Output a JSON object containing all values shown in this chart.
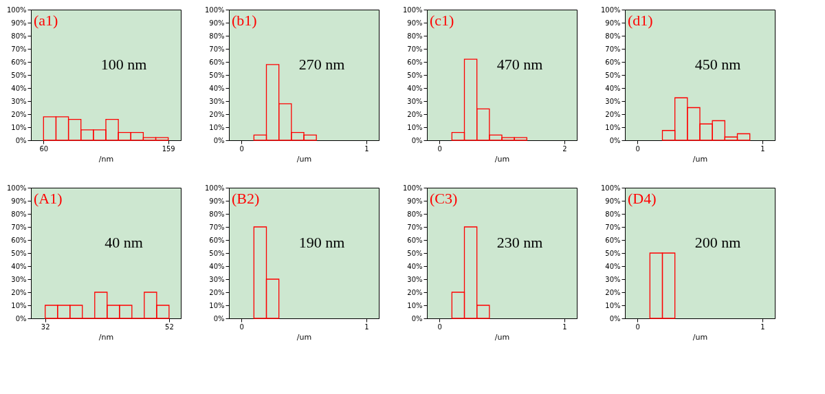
{
  "chart_data": [
    {
      "type": "histogram",
      "bins": [
        60,
        69.9,
        79.8,
        89.7,
        99.6,
        109.5,
        119.4,
        129.3,
        139.2,
        149.1,
        159
      ],
      "values": [
        18,
        18,
        16,
        8,
        8,
        16,
        6,
        6,
        2,
        2
      ],
      "color": "#ff0000",
      "xlim": [
        50,
        169
      ],
      "xticks": [
        60,
        159
      ],
      "xlabel": "/nm",
      "ylim": [
        0,
        100
      ],
      "yticks": [
        {
          "value": 0,
          "label": "0%"
        },
        {
          "value": 10,
          "label": "10%"
        },
        {
          "value": 20,
          "label": "20%"
        },
        {
          "value": 30,
          "label": "30%"
        },
        {
          "value": 40,
          "label": "40%"
        },
        {
          "value": 50,
          "label": "50%"
        },
        {
          "value": 60,
          "label": "60%"
        },
        {
          "value": 70,
          "label": "70%"
        },
        {
          "value": 80,
          "label": "80%"
        },
        {
          "value": 90,
          "label": "90%"
        },
        {
          "value": 100,
          "label": "100%"
        }
      ],
      "grid": false,
      "annotations": [
        "(a1)",
        "100 nm"
      ]
    },
    {
      "type": "histogram",
      "bins": [
        0.1,
        0.2,
        0.3,
        0.4,
        0.5,
        0.6
      ],
      "values": [
        4,
        58,
        28,
        6,
        4
      ],
      "color": "#ff0000",
      "xlim": [
        -0.1,
        1.1
      ],
      "xticks": [
        0,
        1
      ],
      "xlabel": "/um",
      "ylim": [
        0,
        100
      ],
      "yticks": [
        {
          "value": 0,
          "label": "0%"
        },
        {
          "value": 10,
          "label": "10%"
        },
        {
          "value": 20,
          "label": "20%"
        },
        {
          "value": 30,
          "label": "30%"
        },
        {
          "value": 40,
          "label": "40%"
        },
        {
          "value": 50,
          "label": "50%"
        },
        {
          "value": 60,
          "label": "60%"
        },
        {
          "value": 70,
          "label": "70%"
        },
        {
          "value": 80,
          "label": "80%"
        },
        {
          "value": 90,
          "label": "90%"
        },
        {
          "value": 100,
          "label": "100%"
        }
      ],
      "grid": false,
      "annotations": [
        "(b1)",
        "270 nm"
      ]
    },
    {
      "type": "histogram",
      "bins": [
        0.2,
        0.4,
        0.6,
        0.8,
        1.0,
        1.2,
        1.4
      ],
      "values": [
        6,
        62,
        24,
        4,
        2,
        2
      ],
      "color": "#ff0000",
      "xlim": [
        -0.2,
        2.2
      ],
      "xticks": [
        0,
        2
      ],
      "xlabel": "/um",
      "ylim": [
        0,
        100
      ],
      "yticks": [
        {
          "value": 0,
          "label": "0%"
        },
        {
          "value": 10,
          "label": "10%"
        },
        {
          "value": 20,
          "label": "20%"
        },
        {
          "value": 30,
          "label": "30%"
        },
        {
          "value": 40,
          "label": "40%"
        },
        {
          "value": 50,
          "label": "50%"
        },
        {
          "value": 60,
          "label": "60%"
        },
        {
          "value": 70,
          "label": "70%"
        },
        {
          "value": 80,
          "label": "80%"
        },
        {
          "value": 90,
          "label": "90%"
        },
        {
          "value": 100,
          "label": "100%"
        }
      ],
      "grid": false,
      "annotations": [
        "(c1)",
        "470 nm"
      ]
    },
    {
      "type": "histogram",
      "bins": [
        0.2,
        0.3,
        0.4,
        0.5,
        0.6,
        0.7,
        0.8,
        0.9
      ],
      "values": [
        7.5,
        32.5,
        25,
        12.5,
        15,
        2.5,
        5
      ],
      "color": "#ff0000",
      "xlim": [
        -0.1,
        1.1
      ],
      "xticks": [
        0,
        1
      ],
      "xlabel": "/um",
      "ylim": [
        0,
        100
      ],
      "yticks": [
        {
          "value": 0,
          "label": "0%"
        },
        {
          "value": 10,
          "label": "10%"
        },
        {
          "value": 20,
          "label": "20%"
        },
        {
          "value": 30,
          "label": "30%"
        },
        {
          "value": 40,
          "label": "40%"
        },
        {
          "value": 50,
          "label": "50%"
        },
        {
          "value": 60,
          "label": "60%"
        },
        {
          "value": 70,
          "label": "70%"
        },
        {
          "value": 80,
          "label": "80%"
        },
        {
          "value": 90,
          "label": "90%"
        },
        {
          "value": 100,
          "label": "100%"
        }
      ],
      "grid": false,
      "annotations": [
        "(d1)",
        "450 nm"
      ]
    },
    {
      "type": "histogram",
      "bins": [
        32,
        34,
        36,
        38,
        40,
        42,
        44,
        46,
        48,
        50,
        52
      ],
      "values": [
        10,
        10,
        10,
        0,
        20,
        10,
        10,
        0,
        20,
        10
      ],
      "color": "#ff0000",
      "xlim": [
        29.7,
        53.9
      ],
      "xticks": [
        32,
        52
      ],
      "xlabel": "/nm",
      "ylim": [
        0,
        100
      ],
      "yticks": [
        {
          "value": 0,
          "label": "0%"
        },
        {
          "value": 10,
          "label": "10%"
        },
        {
          "value": 20,
          "label": "20%"
        },
        {
          "value": 30,
          "label": "30%"
        },
        {
          "value": 40,
          "label": "40%"
        },
        {
          "value": 50,
          "label": "50%"
        },
        {
          "value": 60,
          "label": "60%"
        },
        {
          "value": 70,
          "label": "70%"
        },
        {
          "value": 80,
          "label": "80%"
        },
        {
          "value": 90,
          "label": "90%"
        },
        {
          "value": 100,
          "label": "100%"
        }
      ],
      "grid": false,
      "annotations": [
        "(A1)",
        "40 nm"
      ]
    },
    {
      "type": "histogram",
      "bins": [
        0.1,
        0.2,
        0.3
      ],
      "values": [
        70,
        30
      ],
      "color": "#ff0000",
      "xlim": [
        -0.1,
        1.1
      ],
      "xticks": [
        0,
        1
      ],
      "xlabel": "/um",
      "ylim": [
        0,
        100
      ],
      "yticks": [
        {
          "value": 0,
          "label": "0%"
        },
        {
          "value": 10,
          "label": "10%"
        },
        {
          "value": 20,
          "label": "20%"
        },
        {
          "value": 30,
          "label": "30%"
        },
        {
          "value": 40,
          "label": "40%"
        },
        {
          "value": 50,
          "label": "50%"
        },
        {
          "value": 60,
          "label": "60%"
        },
        {
          "value": 70,
          "label": "70%"
        },
        {
          "value": 80,
          "label": "80%"
        },
        {
          "value": 90,
          "label": "90%"
        },
        {
          "value": 100,
          "label": "100%"
        }
      ],
      "grid": false,
      "annotations": [
        "(B2)",
        "190 nm"
      ]
    },
    {
      "type": "histogram",
      "bins": [
        0.1,
        0.2,
        0.3,
        0.4
      ],
      "values": [
        20,
        70,
        10
      ],
      "color": "#ff0000",
      "xlim": [
        -0.1,
        1.1
      ],
      "xticks": [
        0,
        1
      ],
      "xlabel": "/um",
      "ylim": [
        0,
        100
      ],
      "yticks": [
        {
          "value": 0,
          "label": "0%"
        },
        {
          "value": 10,
          "label": "10%"
        },
        {
          "value": 20,
          "label": "20%"
        },
        {
          "value": 30,
          "label": "30%"
        },
        {
          "value": 40,
          "label": "40%"
        },
        {
          "value": 50,
          "label": "50%"
        },
        {
          "value": 60,
          "label": "60%"
        },
        {
          "value": 70,
          "label": "70%"
        },
        {
          "value": 80,
          "label": "80%"
        },
        {
          "value": 90,
          "label": "90%"
        },
        {
          "value": 100,
          "label": "100%"
        }
      ],
      "grid": false,
      "annotations": [
        "(C3)",
        "230 nm"
      ]
    },
    {
      "type": "histogram",
      "bins": [
        0.1,
        0.2,
        0.3
      ],
      "values": [
        50,
        50
      ],
      "color": "#ff0000",
      "xlim": [
        -0.1,
        1.1
      ],
      "xticks": [
        0,
        1
      ],
      "xlabel": "/um",
      "ylim": [
        0,
        100
      ],
      "yticks": [
        {
          "value": 0,
          "label": "0%"
        },
        {
          "value": 10,
          "label": "10%"
        },
        {
          "value": 20,
          "label": "20%"
        },
        {
          "value": 30,
          "label": "30%"
        },
        {
          "value": 40,
          "label": "40%"
        },
        {
          "value": 50,
          "label": "50%"
        },
        {
          "value": 60,
          "label": "60%"
        },
        {
          "value": 70,
          "label": "70%"
        },
        {
          "value": 80,
          "label": "80%"
        },
        {
          "value": 90,
          "label": "90%"
        },
        {
          "value": 100,
          "label": "100%"
        }
      ],
      "grid": false,
      "annotations": [
        "(D4)",
        "200 nm"
      ]
    }
  ]
}
